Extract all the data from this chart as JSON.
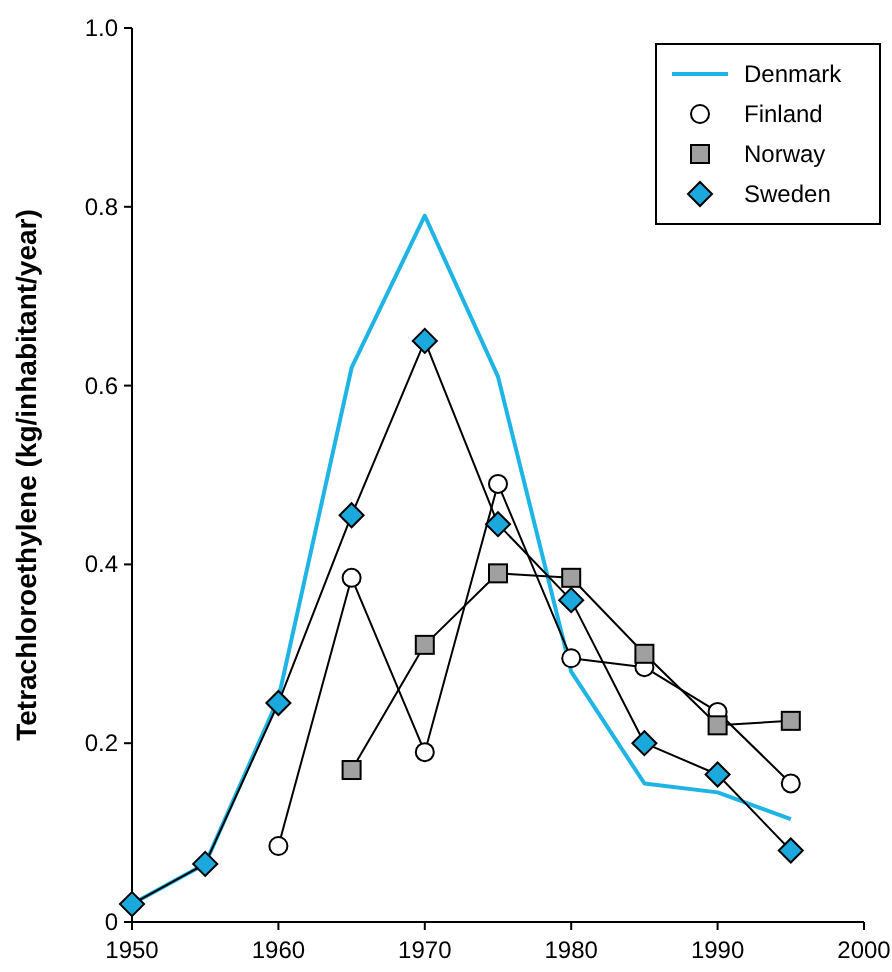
{
  "chart_data": {
    "type": "line",
    "ylabel": "Tetrachloroethylene (kg/inhabitant/year)",
    "x": [
      1950,
      1955,
      1960,
      1965,
      1970,
      1975,
      1980,
      1985,
      1990,
      1995
    ],
    "xlim": [
      1950,
      2000
    ],
    "xticks": [
      1950,
      1960,
      1970,
      1980,
      1990,
      2000
    ],
    "ylim": [
      0,
      1
    ],
    "yticks": [
      0,
      0.2,
      0.4,
      0.6,
      0.8,
      {
        "value": 1,
        "label": "1.0"
      }
    ],
    "grid": false,
    "legend": "top right",
    "series": [
      {
        "name": "Denmark",
        "color": "#1eb4e6",
        "marker": "none",
        "values": [
          0.02,
          0.065,
          0.25,
          0.62,
          0.79,
          0.61,
          0.28,
          0.155,
          0.145,
          0.115
        ]
      },
      {
        "name": "Finland",
        "color": "#ffffff",
        "marker": "circle",
        "values": [
          null,
          null,
          0.085,
          0.385,
          0.19,
          0.49,
          0.295,
          0.285,
          0.235,
          0.155
        ]
      },
      {
        "name": "Norway",
        "color": "#a0a0a0",
        "marker": "square",
        "values": [
          null,
          null,
          null,
          0.17,
          0.31,
          0.39,
          0.385,
          0.3,
          0.22,
          0.225
        ]
      },
      {
        "name": "Sweden",
        "color": "#1ba9dd",
        "marker": "diamond",
        "values": [
          0.02,
          0.065,
          0.245,
          0.455,
          0.65,
          0.445,
          0.36,
          0.2,
          0.165,
          0.08
        ]
      }
    ]
  }
}
